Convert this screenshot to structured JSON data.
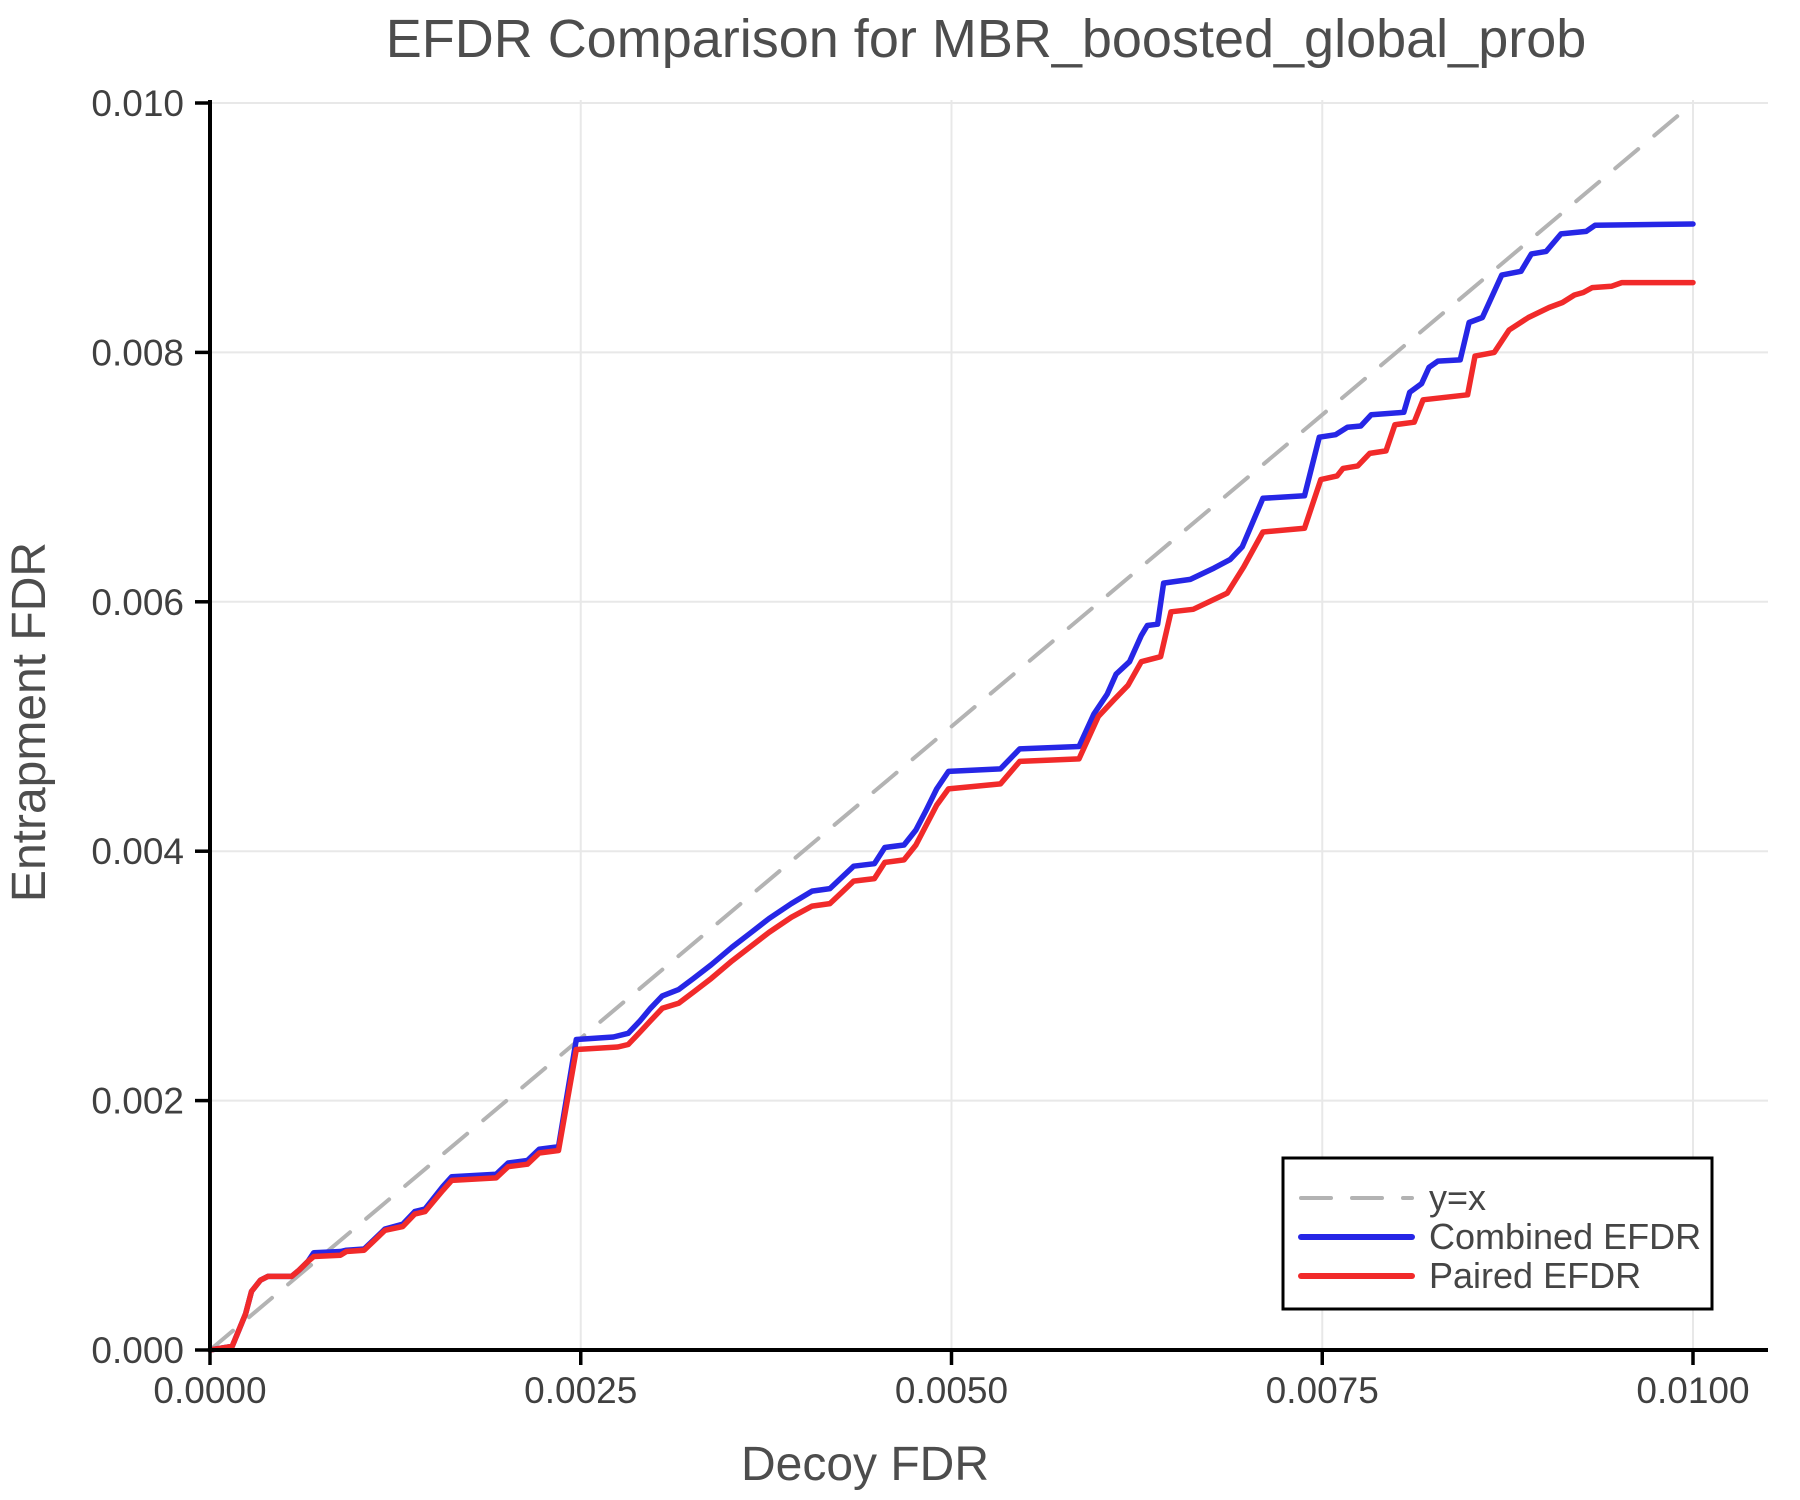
{
  "title": "EFDR Comparison for MBR_boosted_global_prob",
  "colors": {
    "background": "#ffffff",
    "title_text": "#4d4d4d",
    "axis_label_text": "#4d4d4d",
    "tick_label_text": "#404040",
    "grid": "#e8e8e8",
    "spine": "#000000",
    "reference_line": "#b3b3b3",
    "combined_efdr": "#2626e6",
    "paired_efdr": "#f12a2a",
    "legend_border": "#000000",
    "legend_background": "#ffffff"
  },
  "chart_data": {
    "type": "line",
    "title": "EFDR Comparison for MBR_boosted_global_prob",
    "xlabel": "Decoy FDR",
    "ylabel": "Entrapment FDR",
    "xlim": [
      0.0,
      0.0105
    ],
    "ylim": [
      0.0,
      0.01002
    ],
    "grid": true,
    "x_ticks": {
      "values": [
        0.0,
        0.0025,
        0.005,
        0.0075,
        0.01
      ],
      "labels": [
        "0.0000",
        "0.0025",
        "0.0050",
        "0.0075",
        "0.0100"
      ]
    },
    "y_ticks": {
      "values": [
        0.0,
        0.002,
        0.004,
        0.006,
        0.008,
        0.01
      ],
      "labels": [
        "0.000",
        "0.002",
        "0.004",
        "0.006",
        "0.008",
        "0.010"
      ]
    },
    "legend": {
      "position": "bottom-right",
      "entries": [
        {
          "label": "y=x",
          "color": "#b3b3b3",
          "dash": true
        },
        {
          "label": "Combined EFDR",
          "color": "#2626e6",
          "dash": false
        },
        {
          "label": "Paired EFDR",
          "color": "#f12a2a",
          "dash": false
        }
      ]
    },
    "series": [
      {
        "name": "y=x",
        "style": "dashed",
        "color": "#b3b3b3",
        "width": 4,
        "points": [
          [
            0.0,
            0.0
          ],
          [
            0.01,
            0.01
          ]
        ]
      },
      {
        "name": "Combined EFDR",
        "style": "solid",
        "color": "#2626e6",
        "width": 5.5,
        "points": [
          [
            0.0,
            0.0
          ],
          [
            0.00015,
            3e-05
          ],
          [
            0.00024,
            0.00029
          ],
          [
            0.00028,
            0.00047
          ],
          [
            0.00034,
            0.00056
          ],
          [
            0.00039,
            0.00059
          ],
          [
            0.00055,
            0.00059
          ],
          [
            0.0006,
            0.00064
          ],
          [
            0.00066,
            0.00071
          ],
          [
            0.0007,
            0.00078
          ],
          [
            0.00088,
            0.00079
          ],
          [
            0.00092,
            0.0008
          ],
          [
            0.00104,
            0.00081
          ],
          [
            0.00118,
            0.00097
          ],
          [
            0.0013,
            0.00101
          ],
          [
            0.00138,
            0.00111
          ],
          [
            0.00145,
            0.00113
          ],
          [
            0.00157,
            0.00131
          ],
          [
            0.00163,
            0.00139
          ],
          [
            0.00193,
            0.00141
          ],
          [
            0.00201,
            0.0015
          ],
          [
            0.00214,
            0.00152
          ],
          [
            0.00222,
            0.00161
          ],
          [
            0.00235,
            0.00163
          ],
          [
            0.00247,
            0.00249
          ],
          [
            0.00272,
            0.00251
          ],
          [
            0.00282,
            0.00254
          ],
          [
            0.0029,
            0.00264
          ],
          [
            0.00297,
            0.00274
          ],
          [
            0.00305,
            0.00284
          ],
          [
            0.00316,
            0.00289
          ],
          [
            0.00326,
            0.00298
          ],
          [
            0.00338,
            0.00309
          ],
          [
            0.00352,
            0.00323
          ],
          [
            0.00364,
            0.00334
          ],
          [
            0.00377,
            0.00346
          ],
          [
            0.00392,
            0.00358
          ],
          [
            0.00406,
            0.00368
          ],
          [
            0.00418,
            0.0037
          ],
          [
            0.00426,
            0.00379
          ],
          [
            0.00434,
            0.00388
          ],
          [
            0.00448,
            0.0039
          ],
          [
            0.00455,
            0.00403
          ],
          [
            0.00468,
            0.00405
          ],
          [
            0.00476,
            0.00417
          ],
          [
            0.00483,
            0.00433
          ],
          [
            0.0049,
            0.0045
          ],
          [
            0.00498,
            0.00464
          ],
          [
            0.00533,
            0.00466
          ],
          [
            0.00546,
            0.00482
          ],
          [
            0.00586,
            0.00484
          ],
          [
            0.00596,
            0.0051
          ],
          [
            0.00605,
            0.00526
          ],
          [
            0.00611,
            0.00542
          ],
          [
            0.0062,
            0.00552
          ],
          [
            0.00628,
            0.00573
          ],
          [
            0.00632,
            0.00581
          ],
          [
            0.00639,
            0.00582
          ],
          [
            0.00643,
            0.00615
          ],
          [
            0.00661,
            0.00618
          ],
          [
            0.00677,
            0.00627
          ],
          [
            0.00688,
            0.00634
          ],
          [
            0.00696,
            0.00644
          ],
          [
            0.0071,
            0.00683
          ],
          [
            0.00738,
            0.00685
          ],
          [
            0.00748,
            0.00732
          ],
          [
            0.00759,
            0.00734
          ],
          [
            0.00767,
            0.0074
          ],
          [
            0.00776,
            0.00741
          ],
          [
            0.00783,
            0.0075
          ],
          [
            0.00805,
            0.00752
          ],
          [
            0.00809,
            0.00768
          ],
          [
            0.00817,
            0.00775
          ],
          [
            0.00822,
            0.00788
          ],
          [
            0.00828,
            0.00793
          ],
          [
            0.00843,
            0.00794
          ],
          [
            0.00849,
            0.00824
          ],
          [
            0.00858,
            0.00828
          ],
          [
            0.00871,
            0.00862
          ],
          [
            0.00884,
            0.00865
          ],
          [
            0.00891,
            0.00879
          ],
          [
            0.00901,
            0.00881
          ],
          [
            0.00911,
            0.00895
          ],
          [
            0.00928,
            0.00897
          ],
          [
            0.00934,
            0.00902
          ],
          [
            0.01,
            0.00903
          ]
        ]
      },
      {
        "name": "Paired EFDR",
        "style": "solid",
        "color": "#f12a2a",
        "width": 5.5,
        "points": [
          [
            0.0,
            0.0
          ],
          [
            0.00015,
            3e-05
          ],
          [
            0.00024,
            0.00029
          ],
          [
            0.00028,
            0.00047
          ],
          [
            0.00034,
            0.00056
          ],
          [
            0.00039,
            0.00059
          ],
          [
            0.00055,
            0.00059
          ],
          [
            0.0006,
            0.00064
          ],
          [
            0.00066,
            0.00071
          ],
          [
            0.0007,
            0.00075
          ],
          [
            0.00088,
            0.00076
          ],
          [
            0.00092,
            0.00079
          ],
          [
            0.00104,
            0.0008
          ],
          [
            0.00118,
            0.00096
          ],
          [
            0.0013,
            0.00099
          ],
          [
            0.00138,
            0.00109
          ],
          [
            0.00145,
            0.00111
          ],
          [
            0.00157,
            0.00128
          ],
          [
            0.00163,
            0.00136
          ],
          [
            0.00193,
            0.00138
          ],
          [
            0.00201,
            0.00147
          ],
          [
            0.00214,
            0.00149
          ],
          [
            0.00222,
            0.00158
          ],
          [
            0.00235,
            0.0016
          ],
          [
            0.00247,
            0.00241
          ],
          [
            0.00275,
            0.00243
          ],
          [
            0.00282,
            0.00245
          ],
          [
            0.0029,
            0.00255
          ],
          [
            0.00297,
            0.00264
          ],
          [
            0.00305,
            0.00274
          ],
          [
            0.00316,
            0.00278
          ],
          [
            0.00326,
            0.00287
          ],
          [
            0.00338,
            0.00298
          ],
          [
            0.00352,
            0.00312
          ],
          [
            0.00364,
            0.00323
          ],
          [
            0.00377,
            0.00335
          ],
          [
            0.00392,
            0.00347
          ],
          [
            0.00406,
            0.00356
          ],
          [
            0.00418,
            0.00358
          ],
          [
            0.00426,
            0.00367
          ],
          [
            0.00434,
            0.00376
          ],
          [
            0.00448,
            0.00378
          ],
          [
            0.00455,
            0.00391
          ],
          [
            0.00468,
            0.00393
          ],
          [
            0.00476,
            0.00405
          ],
          [
            0.00483,
            0.00421
          ],
          [
            0.0049,
            0.00437
          ],
          [
            0.00498,
            0.0045
          ],
          [
            0.00533,
            0.00454
          ],
          [
            0.00546,
            0.00472
          ],
          [
            0.00586,
            0.00474
          ],
          [
            0.00599,
            0.00508
          ],
          [
            0.0061,
            0.00522
          ],
          [
            0.00619,
            0.00533
          ],
          [
            0.00628,
            0.00552
          ],
          [
            0.00641,
            0.00556
          ],
          [
            0.00648,
            0.00592
          ],
          [
            0.00663,
            0.00594
          ],
          [
            0.00686,
            0.00607
          ],
          [
            0.00697,
            0.00628
          ],
          [
            0.0071,
            0.00656
          ],
          [
            0.00738,
            0.00659
          ],
          [
            0.00749,
            0.00698
          ],
          [
            0.0076,
            0.00701
          ],
          [
            0.00764,
            0.00707
          ],
          [
            0.00774,
            0.00709
          ],
          [
            0.00782,
            0.00719
          ],
          [
            0.00793,
            0.00721
          ],
          [
            0.00799,
            0.00742
          ],
          [
            0.00812,
            0.00744
          ],
          [
            0.00818,
            0.00762
          ],
          [
            0.00833,
            0.00764
          ],
          [
            0.00848,
            0.00766
          ],
          [
            0.00853,
            0.00797
          ],
          [
            0.00866,
            0.008
          ],
          [
            0.00876,
            0.00818
          ],
          [
            0.00889,
            0.00828
          ],
          [
            0.00903,
            0.00836
          ],
          [
            0.00912,
            0.0084
          ],
          [
            0.0092,
            0.00846
          ],
          [
            0.00926,
            0.00848
          ],
          [
            0.00932,
            0.00852
          ],
          [
            0.00945,
            0.00853
          ],
          [
            0.00952,
            0.00856
          ],
          [
            0.01,
            0.00856
          ]
        ]
      }
    ]
  }
}
